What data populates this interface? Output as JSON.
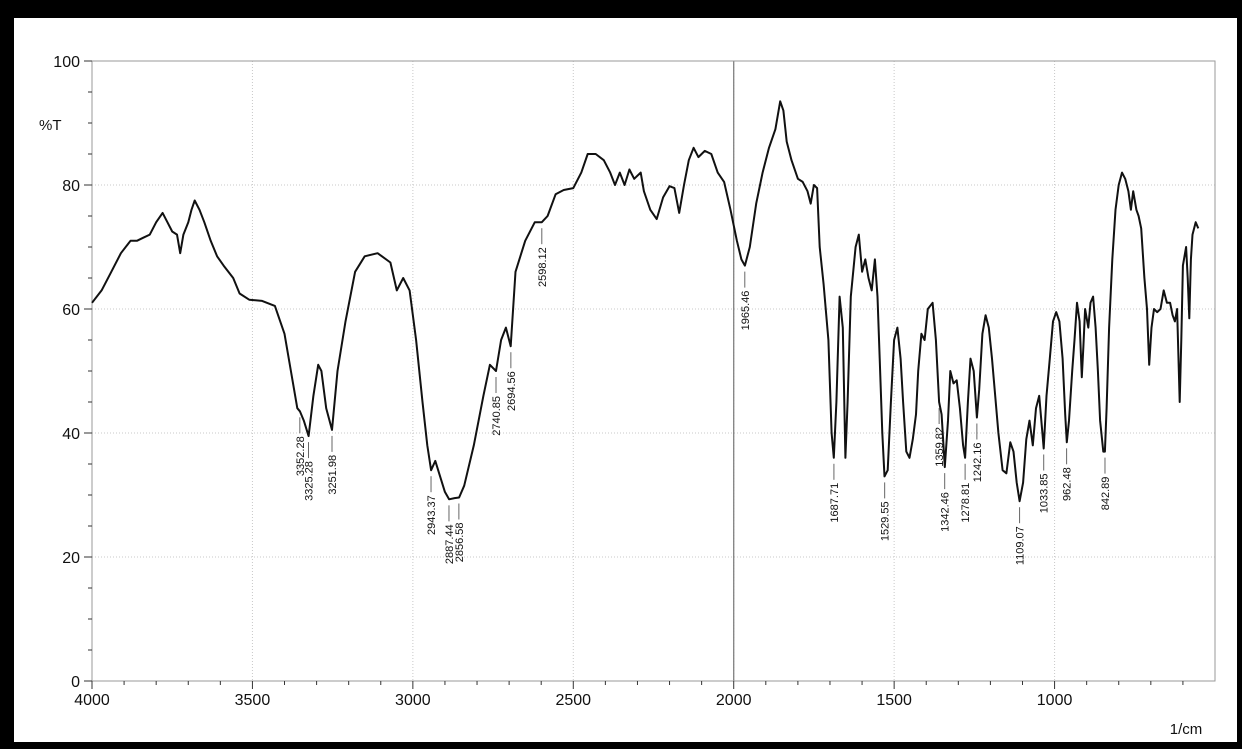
{
  "chart_data": {
    "type": "line",
    "title": "",
    "xlabel": "1/cm",
    "ylabel": "%T",
    "xlim": [
      4000,
      500
    ],
    "ylim": [
      0,
      100
    ],
    "x_ticks": [
      "4000",
      "3500",
      "3000",
      "2500",
      "2000",
      "1500",
      "1000"
    ],
    "y_ticks": [
      "0",
      "20",
      "40",
      "60",
      "80",
      "100"
    ],
    "grid": true,
    "marker_line_x": 2000,
    "series": [
      {
        "points": [
          [
            4000,
            61
          ],
          [
            3970,
            63
          ],
          [
            3940,
            66
          ],
          [
            3910,
            69
          ],
          [
            3880,
            71
          ],
          [
            3860,
            71
          ],
          [
            3840,
            71.5
          ],
          [
            3820,
            72
          ],
          [
            3800,
            74
          ],
          [
            3780,
            75.5
          ],
          [
            3765,
            74
          ],
          [
            3750,
            72.5
          ],
          [
            3735,
            72
          ],
          [
            3725,
            69
          ],
          [
            3715,
            72
          ],
          [
            3700,
            74
          ],
          [
            3690,
            76
          ],
          [
            3680,
            77.5
          ],
          [
            3665,
            76
          ],
          [
            3650,
            74
          ],
          [
            3630,
            71
          ],
          [
            3610,
            68.5
          ],
          [
            3590,
            67
          ],
          [
            3560,
            65
          ],
          [
            3540,
            62.5
          ],
          [
            3510,
            61.5
          ],
          [
            3470,
            61.3
          ],
          [
            3430,
            60.5
          ],
          [
            3400,
            56
          ],
          [
            3380,
            50
          ],
          [
            3360,
            44
          ],
          [
            3352,
            43.5
          ],
          [
            3340,
            42
          ],
          [
            3325,
            39.5
          ],
          [
            3310,
            46
          ],
          [
            3295,
            51
          ],
          [
            3285,
            50
          ],
          [
            3270,
            44
          ],
          [
            3252,
            40.5
          ],
          [
            3235,
            50
          ],
          [
            3210,
            58
          ],
          [
            3180,
            66
          ],
          [
            3150,
            68.5
          ],
          [
            3110,
            69
          ],
          [
            3070,
            67.5
          ],
          [
            3050,
            63
          ],
          [
            3030,
            65
          ],
          [
            3010,
            63
          ],
          [
            2990,
            55
          ],
          [
            2970,
            45
          ],
          [
            2955,
            38
          ],
          [
            2943,
            34
          ],
          [
            2930,
            35.5
          ],
          [
            2915,
            33
          ],
          [
            2900,
            30.5
          ],
          [
            2887,
            29.3
          ],
          [
            2870,
            29.5
          ],
          [
            2856,
            29.6
          ],
          [
            2840,
            31.5
          ],
          [
            2810,
            38
          ],
          [
            2780,
            46
          ],
          [
            2760,
            51
          ],
          [
            2741,
            50
          ],
          [
            2725,
            55
          ],
          [
            2710,
            57
          ],
          [
            2695,
            54
          ],
          [
            2680,
            66
          ],
          [
            2650,
            71
          ],
          [
            2620,
            74
          ],
          [
            2598,
            74
          ],
          [
            2580,
            75
          ],
          [
            2555,
            78.5
          ],
          [
            2530,
            79.2
          ],
          [
            2500,
            79.5
          ],
          [
            2475,
            82
          ],
          [
            2455,
            85
          ],
          [
            2430,
            85
          ],
          [
            2405,
            84
          ],
          [
            2385,
            82
          ],
          [
            2370,
            80
          ],
          [
            2355,
            82
          ],
          [
            2340,
            80
          ],
          [
            2325,
            82.5
          ],
          [
            2310,
            81
          ],
          [
            2290,
            82
          ],
          [
            2280,
            79
          ],
          [
            2260,
            76
          ],
          [
            2240,
            74.5
          ],
          [
            2220,
            78
          ],
          [
            2200,
            79.8
          ],
          [
            2185,
            79.5
          ],
          [
            2170,
            75.5
          ],
          [
            2155,
            80
          ],
          [
            2140,
            84
          ],
          [
            2125,
            86
          ],
          [
            2110,
            84.5
          ],
          [
            2090,
            85.5
          ],
          [
            2070,
            85
          ],
          [
            2050,
            82
          ],
          [
            2030,
            80.5
          ],
          [
            2010,
            76
          ],
          [
            1990,
            71
          ],
          [
            1976,
            68
          ],
          [
            1965,
            67
          ],
          [
            1950,
            70
          ],
          [
            1930,
            77
          ],
          [
            1910,
            82
          ],
          [
            1890,
            86
          ],
          [
            1870,
            89
          ],
          [
            1855,
            93.5
          ],
          [
            1845,
            92
          ],
          [
            1835,
            87
          ],
          [
            1820,
            84
          ],
          [
            1800,
            81
          ],
          [
            1785,
            80.5
          ],
          [
            1770,
            79
          ],
          [
            1760,
            77
          ],
          [
            1750,
            80
          ],
          [
            1740,
            79.5
          ],
          [
            1732,
            70
          ],
          [
            1720,
            64
          ],
          [
            1705,
            55
          ],
          [
            1695,
            40
          ],
          [
            1688,
            36
          ],
          [
            1680,
            45
          ],
          [
            1670,
            62
          ],
          [
            1660,
            57
          ],
          [
            1652,
            36
          ],
          [
            1645,
            45
          ],
          [
            1635,
            62
          ],
          [
            1620,
            70
          ],
          [
            1610,
            72
          ],
          [
            1600,
            66
          ],
          [
            1590,
            68
          ],
          [
            1580,
            65
          ],
          [
            1570,
            63
          ],
          [
            1560,
            68
          ],
          [
            1552,
            62
          ],
          [
            1545,
            52
          ],
          [
            1537,
            40
          ],
          [
            1530,
            33
          ],
          [
            1520,
            34
          ],
          [
            1510,
            45
          ],
          [
            1500,
            55
          ],
          [
            1490,
            57
          ],
          [
            1480,
            52
          ],
          [
            1472,
            45
          ],
          [
            1462,
            37
          ],
          [
            1452,
            36
          ],
          [
            1442,
            39
          ],
          [
            1432,
            43
          ],
          [
            1425,
            50
          ],
          [
            1415,
            56
          ],
          [
            1405,
            55
          ],
          [
            1395,
            60
          ],
          [
            1380,
            61
          ],
          [
            1370,
            55
          ],
          [
            1360,
            45
          ],
          [
            1352,
            43
          ],
          [
            1342,
            34.5
          ],
          [
            1332,
            42
          ],
          [
            1325,
            50
          ],
          [
            1315,
            48
          ],
          [
            1305,
            48.5
          ],
          [
            1295,
            44
          ],
          [
            1285,
            38
          ],
          [
            1279,
            36
          ],
          [
            1270,
            45
          ],
          [
            1262,
            52
          ],
          [
            1252,
            50
          ],
          [
            1242,
            42.5
          ],
          [
            1235,
            47
          ],
          [
            1225,
            56
          ],
          [
            1215,
            59
          ],
          [
            1205,
            57
          ],
          [
            1195,
            52
          ],
          [
            1185,
            46
          ],
          [
            1175,
            40
          ],
          [
            1162,
            34
          ],
          [
            1150,
            33.5
          ],
          [
            1138,
            38.5
          ],
          [
            1128,
            37
          ],
          [
            1118,
            32
          ],
          [
            1109,
            29
          ],
          [
            1098,
            32
          ],
          [
            1088,
            39
          ],
          [
            1078,
            42
          ],
          [
            1068,
            38
          ],
          [
            1058,
            44
          ],
          [
            1048,
            46
          ],
          [
            1038,
            40
          ],
          [
            1034,
            37.5
          ],
          [
            1025,
            46
          ],
          [
            1015,
            52
          ],
          [
            1005,
            58
          ],
          [
            995,
            59.5
          ],
          [
            985,
            58
          ],
          [
            975,
            52
          ],
          [
            967,
            43
          ],
          [
            962,
            38.5
          ],
          [
            955,
            42
          ],
          [
            945,
            50
          ],
          [
            938,
            55
          ],
          [
            930,
            61
          ],
          [
            922,
            58
          ],
          [
            915,
            49
          ],
          [
            910,
            54
          ],
          [
            905,
            60
          ],
          [
            895,
            57
          ],
          [
            888,
            61
          ],
          [
            880,
            62
          ],
          [
            872,
            57
          ],
          [
            865,
            50
          ],
          [
            858,
            42
          ],
          [
            848,
            37
          ],
          [
            843,
            37
          ],
          [
            838,
            44
          ],
          [
            830,
            57
          ],
          [
            820,
            68
          ],
          [
            810,
            76
          ],
          [
            800,
            80
          ],
          [
            790,
            82
          ],
          [
            780,
            81
          ],
          [
            770,
            79
          ],
          [
            762,
            76
          ],
          [
            755,
            79
          ],
          [
            745,
            76
          ],
          [
            738,
            75
          ],
          [
            730,
            73
          ],
          [
            720,
            65
          ],
          [
            712,
            60
          ],
          [
            705,
            51
          ],
          [
            698,
            57
          ],
          [
            690,
            60
          ],
          [
            680,
            59.5
          ],
          [
            670,
            60
          ],
          [
            660,
            63
          ],
          [
            650,
            61
          ],
          [
            640,
            61
          ],
          [
            632,
            59
          ],
          [
            625,
            58
          ],
          [
            618,
            60
          ],
          [
            610,
            45
          ],
          [
            605,
            55
          ],
          [
            600,
            67
          ],
          [
            590,
            70
          ],
          [
            585,
            65
          ],
          [
            580,
            58.5
          ],
          [
            575,
            68
          ],
          [
            570,
            72
          ],
          [
            560,
            74
          ],
          [
            552,
            73
          ]
        ]
      }
    ],
    "peaks": [
      {
        "x": 3352.28,
        "label": "3352.28",
        "y": 43.5
      },
      {
        "x": 3325.28,
        "label": "3325.28",
        "y": 39.5
      },
      {
        "x": 3251.98,
        "label": "3251.98",
        "y": 40.5
      },
      {
        "x": 2943.37,
        "label": "2943.37",
        "y": 34
      },
      {
        "x": 2887.44,
        "label": "2887.44",
        "y": 29.3
      },
      {
        "x": 2856.58,
        "label": "2856.58",
        "y": 29.6
      },
      {
        "x": 2740.85,
        "label": "2740.85",
        "y": 50
      },
      {
        "x": 2694.56,
        "label": "2694.56",
        "y": 54
      },
      {
        "x": 2598.12,
        "label": "2598.12",
        "y": 74
      },
      {
        "x": 1965.46,
        "label": "1965.46",
        "y": 67
      },
      {
        "x": 1687.71,
        "label": "1687.71",
        "y": 36
      },
      {
        "x": 1529.55,
        "label": "1529.55",
        "y": 33
      },
      {
        "x": 1359.82,
        "label": "1359.82",
        "y": 45
      },
      {
        "x": 1342.46,
        "label": "1342.46",
        "y": 34.5
      },
      {
        "x": 1278.81,
        "label": "1278.81",
        "y": 36
      },
      {
        "x": 1242.16,
        "label": "1242.16",
        "y": 42.5
      },
      {
        "x": 1109.07,
        "label": "1109.07",
        "y": 29
      },
      {
        "x": 1033.85,
        "label": "1033.85",
        "y": 37.5
      },
      {
        "x": 962.48,
        "label": "962.48",
        "y": 38.5
      },
      {
        "x": 842.89,
        "label": "842.89",
        "y": 37
      }
    ]
  }
}
